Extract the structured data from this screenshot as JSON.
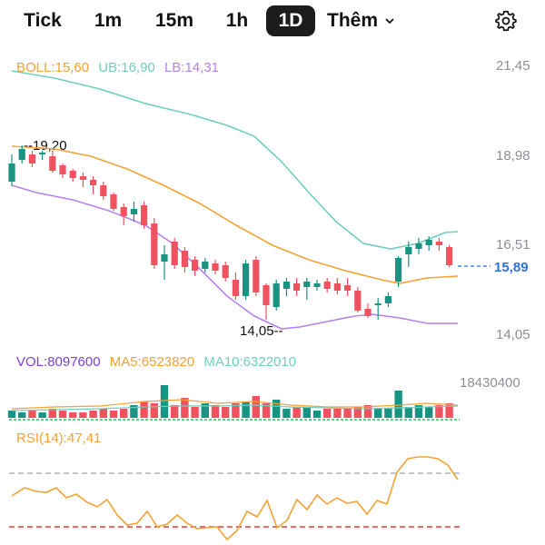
{
  "toolbar": {
    "tabs": [
      {
        "label": "Tick",
        "active": false
      },
      {
        "label": "1m",
        "active": false
      },
      {
        "label": "15m",
        "active": false
      },
      {
        "label": "1h",
        "active": false
      },
      {
        "label": "1D",
        "active": true
      },
      {
        "label": "Thêm",
        "active": false
      }
    ],
    "settings_icon": "gear-icon",
    "more_icon": "chevron-down-icon"
  },
  "main": {
    "boll_label": "BOLL:15,60",
    "ub_label": "UB:16,90",
    "lb_label": "LB:14,31",
    "price_axis": [
      "21,45",
      "18,98",
      "16,51",
      "14,05"
    ],
    "current_price": "15,89",
    "high_marker": "19,20",
    "low_marker": "14,05",
    "colors": {
      "up": "#1a9482",
      "down": "#f0535f",
      "mid": "#f5a232",
      "ub": "#6fcfbd",
      "lb": "#b782ef",
      "current": "#2f6fde"
    }
  },
  "volume": {
    "vol_label": "VOL:8097600",
    "ma5_label": "MA5:6523820",
    "ma10_label": "MA10:6322010",
    "axis_max": "18430400",
    "colors": {
      "vol": "#7b3fe0",
      "ma5": "#f5a232",
      "ma10": "#6fcfbd"
    }
  },
  "rsi": {
    "label": "RSI(14):47,41",
    "color": "#f5a232"
  }
}
